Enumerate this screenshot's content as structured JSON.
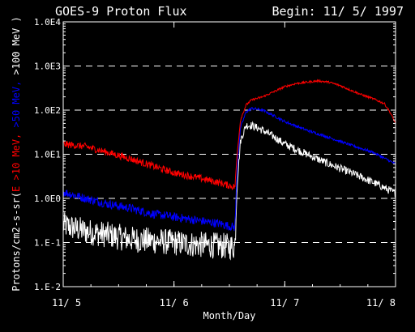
{
  "header": {
    "title": "GOES-9 Proton Flux",
    "begin": "Begin: 11/ 5/ 1997"
  },
  "chart_data": {
    "type": "line",
    "xlabel": "Month/Day",
    "ylabel_parts": [
      {
        "text": "Protons/cm2-s-sr(",
        "color": "#ffffff"
      },
      {
        "text": "E >10 MeV,",
        "color": "#ff0000"
      },
      {
        "text": " >50 MeV,",
        "color": "#0000ff"
      },
      {
        "text": " >100 MeV )",
        "color": "#ffffff"
      }
    ],
    "y_scale": "log",
    "ylim": [
      0.01,
      10000
    ],
    "xlim": [
      0,
      3
    ],
    "x_tick_values": [
      0,
      1,
      2,
      3
    ],
    "x_tick_labels": [
      "11/ 5",
      "11/ 6",
      "11/ 7",
      "11/ 8"
    ],
    "y_tick_values": [
      10000,
      1000,
      100,
      10,
      1,
      0.1,
      0.01
    ],
    "y_tick_labels": [
      "1.0E4",
      "1.0E3",
      "1.0E2",
      "1.0E1",
      "1.0E0",
      "1.E-1",
      "1.E-2"
    ],
    "grid": "horizontal dashed",
    "series": [
      {
        "color": "#ff0000",
        "noise": 0.08,
        "x": [
          0,
          0.2,
          0.4,
          0.6,
          0.8,
          1.0,
          1.2,
          1.4,
          1.55,
          1.57,
          1.6,
          1.65,
          1.7,
          1.8,
          1.9,
          2.0,
          2.1,
          2.2,
          2.3,
          2.4,
          2.5,
          2.6,
          2.7,
          2.8,
          2.9,
          2.95,
          3.0
        ],
        "y": [
          17,
          15,
          11,
          8,
          5.5,
          3.8,
          3,
          2.3,
          1.8,
          10,
          60,
          130,
          170,
          200,
          260,
          340,
          400,
          430,
          460,
          430,
          360,
          280,
          220,
          180,
          140,
          90,
          50
        ]
      },
      {
        "color": "#0000ff",
        "noise": 0.1,
        "x": [
          0,
          0.2,
          0.4,
          0.6,
          0.8,
          1.0,
          1.2,
          1.4,
          1.55,
          1.57,
          1.6,
          1.65,
          1.7,
          1.8,
          1.9,
          2.0,
          2.2,
          2.4,
          2.6,
          2.8,
          3.0
        ],
        "y": [
          1.4,
          1.0,
          0.75,
          0.6,
          0.45,
          0.38,
          0.32,
          0.27,
          0.22,
          5,
          40,
          90,
          110,
          100,
          75,
          55,
          35,
          24,
          16,
          11,
          6
        ]
      },
      {
        "color": "#ffffff",
        "noise": 0.3,
        "x": [
          0,
          0.2,
          0.4,
          0.6,
          0.8,
          1.0,
          1.2,
          1.4,
          1.55,
          1.57,
          1.6,
          1.65,
          1.7,
          1.8,
          1.9,
          2.0,
          2.2,
          2.4,
          2.6,
          2.8,
          3.0
        ],
        "y": [
          0.25,
          0.18,
          0.15,
          0.12,
          0.11,
          0.1,
          0.09,
          0.085,
          0.08,
          2,
          20,
          45,
          45,
          35,
          25,
          17,
          10,
          6,
          3.8,
          2.3,
          1.3
        ]
      }
    ]
  }
}
